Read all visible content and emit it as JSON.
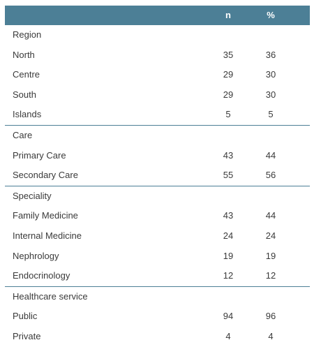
{
  "header": {
    "col_n": "n",
    "col_pct": "%"
  },
  "sections": [
    {
      "title": "Region",
      "rows": [
        {
          "label": "North",
          "n": "35",
          "pct": "36"
        },
        {
          "label": "Centre",
          "n": "29",
          "pct": "30"
        },
        {
          "label": "South",
          "n": "29",
          "pct": "30"
        },
        {
          "label": "Islands",
          "n": "5",
          "pct": "5"
        }
      ]
    },
    {
      "title": "Care",
      "rows": [
        {
          "label": "Primary Care",
          "n": "43",
          "pct": "44"
        },
        {
          "label": "Secondary Care",
          "n": "55",
          "pct": "56"
        }
      ]
    },
    {
      "title": "Speciality",
      "rows": [
        {
          "label": "Family Medicine",
          "n": "43",
          "pct": "44"
        },
        {
          "label": "Internal Medicine",
          "n": "24",
          "pct": "24"
        },
        {
          "label": "Nephrology",
          "n": "19",
          "pct": "19"
        },
        {
          "label": "Endocrinology",
          "n": "12",
          "pct": "12"
        }
      ]
    },
    {
      "title": "Healthcare service",
      "rows": [
        {
          "label": "Public",
          "n": "94",
          "pct": "96"
        },
        {
          "label": "Private",
          "n": "4",
          "pct": "4"
        }
      ]
    }
  ],
  "colors": {
    "header_bg": "#4c7f96",
    "header_text": "#ffffff",
    "divider": "#4c7f96",
    "body_text": "#3a3a3a"
  }
}
